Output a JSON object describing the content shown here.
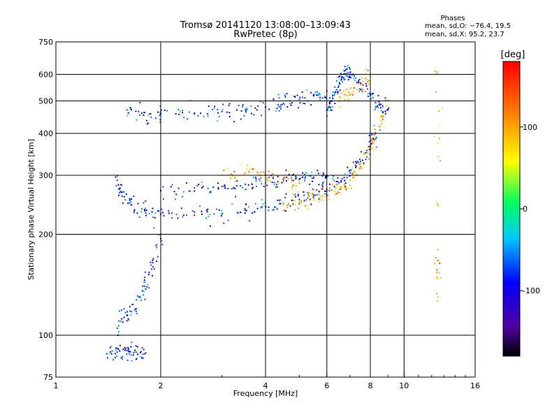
{
  "chart_data": {
    "type": "scatter",
    "title": "Tromsø 20141120 13:08:00–13:09:43",
    "subtitle": "RwPretec (8p)",
    "xlabel": "Frequency [MHz]",
    "ylabel": "Stationary phase Virtual Height [km]",
    "x_scale": "log",
    "y_scale": "log",
    "xlim": [
      1,
      16
    ],
    "ylim": [
      75,
      750
    ],
    "x_ticks": [
      1,
      2,
      4,
      6,
      8,
      10,
      16
    ],
    "y_ticks": [
      75,
      100,
      200,
      300,
      400,
      500,
      600,
      750
    ],
    "x_gridlines": [
      2,
      4,
      6,
      8,
      10
    ],
    "y_gridlines": [
      100,
      200,
      300,
      400,
      500,
      600
    ],
    "grid": true,
    "phases_box": {
      "title": "Phases",
      "line_o": "mean, sd,O: −76.4, 19.5",
      "line_x": "mean, sd,X:  95.2, 23.7"
    },
    "colorbar": {
      "label": "[deg]",
      "range": [
        -180,
        180
      ],
      "ticks": [
        100,
        0,
        -100
      ]
    },
    "series": [
      {
        "mode": "O",
        "phase_mean_deg": -76.4,
        "phase_sd_deg": 19.5,
        "segments": [
          {
            "x": [
              1.6,
              1.8,
              2.0,
              2.5,
              3.0,
              3.5,
              4.0,
              4.5,
              5.0,
              5.5,
              6.0
            ],
            "y": [
              470,
              462,
              458,
              460,
              465,
              470,
              480,
              492,
              505,
              518,
              535
            ]
          },
          {
            "x": [
              1.5,
              1.55,
              1.65,
              1.8,
              2.0,
              2.5,
              3.0,
              3.5,
              4.0,
              4.5,
              5.0,
              5.5,
              6.0,
              6.5,
              7.0,
              7.5,
              8.0,
              8.5
            ],
            "y": [
              290,
              260,
              245,
              235,
              230,
              228,
              230,
              236,
              242,
              248,
              254,
              262,
              272,
              285,
              305,
              330,
              365,
              420
            ]
          },
          {
            "x": [
              2.0,
              2.5,
              3.0,
              3.5,
              4.0,
              4.5,
              5.0,
              5.5,
              6.0
            ],
            "y": [
              270,
              275,
              278,
              282,
              285,
              290,
              292,
              296,
              300
            ]
          },
          {
            "x": [
              6.0,
              6.2,
              6.4,
              6.6,
              6.8,
              7.0,
              7.5,
              8.0,
              8.5,
              9.0
            ],
            "y": [
              470,
              500,
              540,
              580,
              620,
              600,
              560,
              520,
              490,
              470
            ]
          },
          {
            "x": [
              1.5,
              1.6,
              1.7,
              1.8,
              1.9,
              2.0
            ],
            "y": [
              105,
              115,
              120,
              140,
              160,
              200
            ]
          },
          {
            "x": [
              1.4,
              1.5,
              1.6,
              1.7,
              1.8
            ],
            "y": [
              88,
              89,
              90,
              89,
              88
            ]
          }
        ]
      },
      {
        "mode": "X",
        "phase_mean_deg": 95.2,
        "phase_sd_deg": 23.7,
        "segments": [
          {
            "x": [
              4.5,
              5.0,
              5.5,
              6.0,
              6.5,
              7.0,
              7.5,
              8.0,
              8.5,
              9.0
            ],
            "y": [
              245,
              250,
              255,
              262,
              272,
              290,
              320,
              360,
              420,
              500
            ]
          },
          {
            "x": [
              3.0,
              3.5,
              4.0,
              4.5,
              5.0
            ],
            "y": [
              300,
              305,
              300,
              295,
              290
            ]
          },
          {
            "x": [
              6.5,
              7.0,
              7.5,
              8.0
            ],
            "y": [
              500,
              520,
              560,
              600
            ]
          },
          {
            "x": [
              12.5,
              12.5,
              12.5
            ],
            "y": [
              610,
              180,
              130
            ]
          }
        ]
      }
    ]
  }
}
